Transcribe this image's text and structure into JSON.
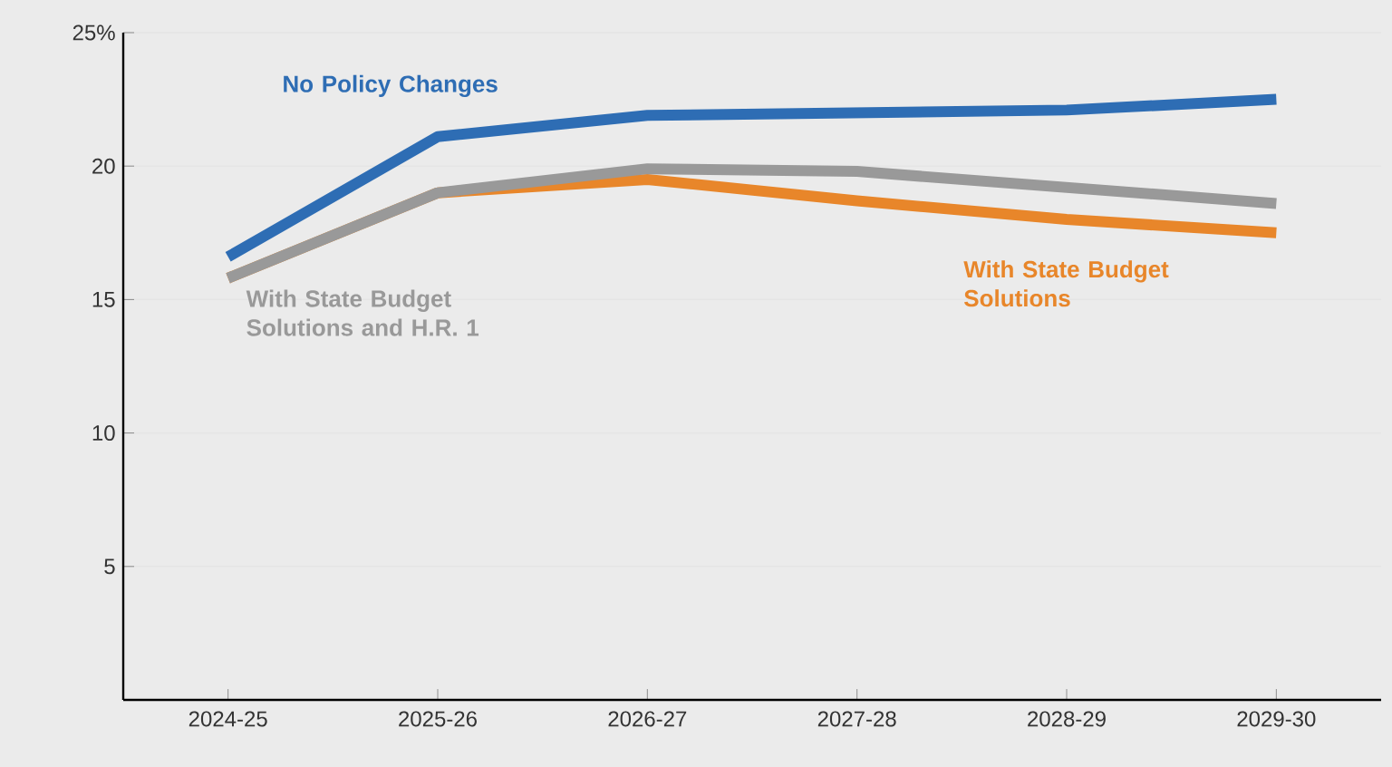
{
  "chart_data": {
    "type": "line",
    "categories": [
      "2024-25",
      "2025-26",
      "2026-27",
      "2027-28",
      "2028-29",
      "2029-30"
    ],
    "series": [
      {
        "name": "No Policy Changes",
        "color": "#2e6db4",
        "values": [
          16.6,
          21.1,
          21.9,
          22.0,
          22.1,
          22.5
        ]
      },
      {
        "name": "With State Budget Solutions",
        "color": "#e8862a",
        "values": [
          15.8,
          19.0,
          19.5,
          18.7,
          18.0,
          17.5
        ]
      },
      {
        "name": "With State Budget Solutions and H.R. 1",
        "color": "#999999",
        "values": [
          15.8,
          19.0,
          19.9,
          19.8,
          19.2,
          18.6
        ]
      }
    ],
    "ylim": [
      0,
      25
    ],
    "yticks": [
      5,
      10,
      15,
      20,
      {
        "value": 25,
        "label": "25%"
      }
    ],
    "grid": "y",
    "legend": false,
    "marker": "none",
    "line_style": "solid"
  }
}
